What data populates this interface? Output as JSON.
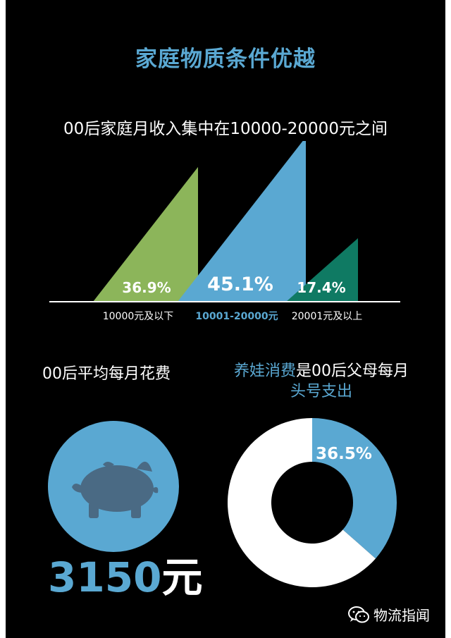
{
  "title": "家庭物质条件优越",
  "colors": {
    "accent_blue": "#5aa8d2",
    "green": "#8cb55a",
    "teal": "#0f7a63",
    "piggy": "#4a6a84",
    "white": "#ffffff",
    "background": "#000000"
  },
  "chart_data": [
    {
      "type": "bar",
      "title": "00后家庭月收入集中在10000-20000元之间",
      "categories": [
        "10000元及以下",
        "10001-20000元",
        "20001元及以上"
      ],
      "values": [
        36.9,
        45.1,
        17.4
      ],
      "value_labels": [
        "36.9%",
        "45.1%",
        "17.4%"
      ],
      "unit": "%",
      "ylim": [
        0,
        50
      ],
      "series_colors": [
        "#8cb55a",
        "#5aa8d2",
        "#0f7a63"
      ],
      "grid": false
    },
    {
      "type": "pie",
      "title_highlight": "养娃消费",
      "title_rest": "是00后父母每月",
      "title_line2": "头号支出",
      "slices": [
        {
          "value": 36.5,
          "label": "36.5%",
          "color": "#5aa8d2"
        },
        {
          "value": 63.5,
          "color": "#ffffff"
        }
      ]
    }
  ],
  "spending": {
    "title": "00后平均每月花费",
    "amount": "3150",
    "unit": "元",
    "icon": "piggy-bank-icon"
  },
  "brand": {
    "icon": "wechat-icon",
    "text": "物流指闻"
  }
}
